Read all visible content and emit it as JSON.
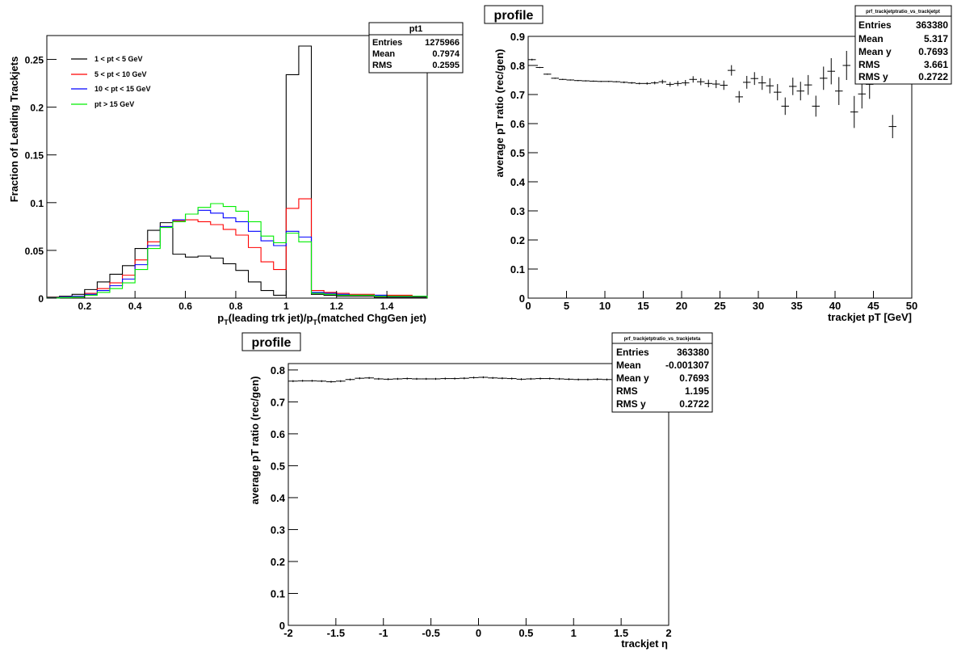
{
  "chart_data": [
    {
      "type": "line",
      "xlabel_pre": "p",
      "xlabel_sub1": "T",
      "xlabel_mid": "(leading trk jet)/p",
      "xlabel_sub2": "T",
      "xlabel_post": "(matched ChgGen jet)",
      "ylabel": "Fraction of Leading Trackjets",
      "xlim": [
        0.05,
        1.56
      ],
      "ylim": [
        0,
        0.275
      ],
      "xticks": [
        {
          "v": 0.2,
          "label": "0.2"
        },
        {
          "v": 0.4,
          "label": "0.4"
        },
        {
          "v": 0.6,
          "label": "0.6"
        },
        {
          "v": 0.8,
          "label": "0.8"
        },
        {
          "v": 1.0,
          "label": "1"
        },
        {
          "v": 1.2,
          "label": "1.2"
        },
        {
          "v": 1.4,
          "label": "1.4"
        }
      ],
      "yticks": [
        {
          "v": 0,
          "label": "0"
        },
        {
          "v": 0.05,
          "label": "0.05"
        },
        {
          "v": 0.1,
          "label": "0.1"
        },
        {
          "v": 0.15,
          "label": "0.15"
        },
        {
          "v": 0.2,
          "label": "0.2"
        },
        {
          "v": 0.25,
          "label": "0.25"
        }
      ],
      "bin_edges": [
        0.05,
        0.1,
        0.15,
        0.2,
        0.25,
        0.3,
        0.35,
        0.4,
        0.45,
        0.5,
        0.55,
        0.6,
        0.65,
        0.7,
        0.75,
        0.8,
        0.85,
        0.9,
        0.95,
        1.0,
        1.05,
        1.1,
        1.15,
        1.2,
        1.25,
        1.3,
        1.35,
        1.4,
        1.45,
        1.5,
        1.56
      ],
      "legend": {
        "placement": "top-left"
      },
      "series": [
        {
          "name": "1 < pt < 5 GeV",
          "color": "#000000",
          "values": [
            0.001,
            0.002,
            0.004,
            0.009,
            0.017,
            0.025,
            0.034,
            0.052,
            0.071,
            0.079,
            0.046,
            0.043,
            0.044,
            0.042,
            0.036,
            0.029,
            0.017,
            0.008,
            0.003,
            0.234,
            0.264,
            0.004,
            0.003,
            0.002,
            0.002,
            0.002,
            0.001,
            0.001,
            0.001,
            0.001
          ]
        },
        {
          "name": "5 < pt < 10 GeV",
          "color": "#ff0000",
          "values": [
            0.0005,
            0.001,
            0.002,
            0.005,
            0.01,
            0.016,
            0.024,
            0.04,
            0.059,
            0.075,
            0.081,
            0.082,
            0.08,
            0.077,
            0.072,
            0.066,
            0.053,
            0.038,
            0.03,
            0.094,
            0.104,
            0.008,
            0.006,
            0.005,
            0.004,
            0.004,
            0.003,
            0.003,
            0.003,
            0.002
          ]
        },
        {
          "name": "10 < pt < 15 GeV",
          "color": "#0000ff",
          "values": [
            0.0003,
            0.001,
            0.002,
            0.004,
            0.008,
            0.013,
            0.02,
            0.035,
            0.055,
            0.075,
            0.082,
            0.088,
            0.092,
            0.089,
            0.084,
            0.08,
            0.07,
            0.06,
            0.055,
            0.07,
            0.064,
            0.006,
            0.005,
            0.004,
            0.003,
            0.003,
            0.003,
            0.002,
            0.002,
            0.002
          ]
        },
        {
          "name": "pt > 15 GeV",
          "color": "#00ee00",
          "values": [
            0.0002,
            0.0005,
            0.001,
            0.003,
            0.006,
            0.01,
            0.016,
            0.03,
            0.052,
            0.074,
            0.08,
            0.088,
            0.095,
            0.099,
            0.096,
            0.091,
            0.08,
            0.065,
            0.058,
            0.068,
            0.059,
            0.005,
            0.004,
            0.003,
            0.003,
            0.003,
            0.002,
            0.002,
            0.002,
            0.002
          ]
        }
      ],
      "stats": {
        "title": "pt1",
        "rows": [
          {
            "label": "Entries",
            "value": "1275966"
          },
          {
            "label": "Mean",
            "value": "0.7974"
          },
          {
            "label": "RMS",
            "value": "0.2595"
          }
        ]
      }
    },
    {
      "type": "scatter",
      "title": "profile",
      "xlabel": "trackjet pT [GeV]",
      "ylabel": "average pT ratio (rec/gen)",
      "xlim": [
        0,
        50
      ],
      "ylim": [
        0,
        0.9
      ],
      "xticks": [
        {
          "v": 0,
          "label": "0"
        },
        {
          "v": 5,
          "label": "5"
        },
        {
          "v": 10,
          "label": "10"
        },
        {
          "v": 15,
          "label": "15"
        },
        {
          "v": 20,
          "label": "20"
        },
        {
          "v": 25,
          "label": "25"
        },
        {
          "v": 30,
          "label": "30"
        },
        {
          "v": 35,
          "label": "35"
        },
        {
          "v": 40,
          "label": "40"
        },
        {
          "v": 45,
          "label": "45"
        },
        {
          "v": 50,
          "label": "50"
        }
      ],
      "yticks": [
        {
          "v": 0,
          "label": "0"
        },
        {
          "v": 0.1,
          "label": "0.1"
        },
        {
          "v": 0.2,
          "label": "0.2"
        },
        {
          "v": 0.3,
          "label": "0.3"
        },
        {
          "v": 0.4,
          "label": "0.4"
        },
        {
          "v": 0.5,
          "label": "0.5"
        },
        {
          "v": 0.6,
          "label": "0.6"
        },
        {
          "v": 0.7,
          "label": "0.7"
        },
        {
          "v": 0.8,
          "label": "0.8"
        },
        {
          "v": 0.9,
          "label": "0.9"
        }
      ],
      "points": [
        {
          "x": 0.5,
          "y": 0.82,
          "e": 0.003
        },
        {
          "x": 1.5,
          "y": 0.793,
          "e": 0.002
        },
        {
          "x": 2.5,
          "y": 0.77,
          "e": 0.002
        },
        {
          "x": 3.5,
          "y": 0.756,
          "e": 0.002
        },
        {
          "x": 4.5,
          "y": 0.752,
          "e": 0.002
        },
        {
          "x": 5.5,
          "y": 0.75,
          "e": 0.002
        },
        {
          "x": 6.5,
          "y": 0.748,
          "e": 0.002
        },
        {
          "x": 7.5,
          "y": 0.747,
          "e": 0.002
        },
        {
          "x": 8.5,
          "y": 0.746,
          "e": 0.002
        },
        {
          "x": 9.5,
          "y": 0.745,
          "e": 0.002
        },
        {
          "x": 10.5,
          "y": 0.745,
          "e": 0.002
        },
        {
          "x": 11.5,
          "y": 0.744,
          "e": 0.002
        },
        {
          "x": 12.5,
          "y": 0.742,
          "e": 0.003
        },
        {
          "x": 13.5,
          "y": 0.74,
          "e": 0.003
        },
        {
          "x": 14.5,
          "y": 0.738,
          "e": 0.003
        },
        {
          "x": 15.5,
          "y": 0.738,
          "e": 0.004
        },
        {
          "x": 16.5,
          "y": 0.74,
          "e": 0.005
        },
        {
          "x": 17.5,
          "y": 0.744,
          "e": 0.007
        },
        {
          "x": 18.5,
          "y": 0.735,
          "e": 0.008
        },
        {
          "x": 19.5,
          "y": 0.738,
          "e": 0.009
        },
        {
          "x": 20.5,
          "y": 0.74,
          "e": 0.01
        },
        {
          "x": 21.5,
          "y": 0.752,
          "e": 0.011
        },
        {
          "x": 22.5,
          "y": 0.744,
          "e": 0.012
        },
        {
          "x": 23.5,
          "y": 0.738,
          "e": 0.013
        },
        {
          "x": 24.5,
          "y": 0.736,
          "e": 0.014
        },
        {
          "x": 25.5,
          "y": 0.732,
          "e": 0.016
        },
        {
          "x": 26.5,
          "y": 0.783,
          "e": 0.018
        },
        {
          "x": 27.5,
          "y": 0.692,
          "e": 0.02
        },
        {
          "x": 28.5,
          "y": 0.742,
          "e": 0.022
        },
        {
          "x": 29.5,
          "y": 0.755,
          "e": 0.022
        },
        {
          "x": 30.5,
          "y": 0.74,
          "e": 0.024
        },
        {
          "x": 31.5,
          "y": 0.73,
          "e": 0.026
        },
        {
          "x": 32.5,
          "y": 0.708,
          "e": 0.028
        },
        {
          "x": 33.5,
          "y": 0.66,
          "e": 0.03
        },
        {
          "x": 34.5,
          "y": 0.728,
          "e": 0.03
        },
        {
          "x": 35.5,
          "y": 0.712,
          "e": 0.032
        },
        {
          "x": 36.5,
          "y": 0.733,
          "e": 0.034
        },
        {
          "x": 37.5,
          "y": 0.66,
          "e": 0.036
        },
        {
          "x": 38.5,
          "y": 0.756,
          "e": 0.04
        },
        {
          "x": 39.5,
          "y": 0.78,
          "e": 0.045
        },
        {
          "x": 40.5,
          "y": 0.712,
          "e": 0.048
        },
        {
          "x": 41.5,
          "y": 0.8,
          "e": 0.05
        },
        {
          "x": 42.5,
          "y": 0.64,
          "e": 0.055
        },
        {
          "x": 43.5,
          "y": 0.702,
          "e": 0.05
        },
        {
          "x": 44.5,
          "y": 0.735,
          "e": 0.05
        },
        {
          "x": 47.5,
          "y": 0.59,
          "e": 0.04
        }
      ],
      "stats": {
        "title": "prf_trackjetptratio_vs_trackjetpt",
        "rows": [
          {
            "label": "Entries",
            "value": "363380"
          },
          {
            "label": "Mean",
            "value": "5.317"
          },
          {
            "label": "Mean y",
            "value": "0.7693"
          },
          {
            "label": "RMS",
            "value": "3.661"
          },
          {
            "label": "RMS y",
            "value": "0.2722"
          }
        ]
      }
    },
    {
      "type": "scatter",
      "title": "profile",
      "xlabel": "trackjet η",
      "ylabel": "average pT ratio (rec/gen)",
      "xlim": [
        -2,
        2
      ],
      "ylim": [
        0,
        0.82
      ],
      "xticks": [
        {
          "v": -2,
          "label": "-2"
        },
        {
          "v": -1.5,
          "label": "-1.5"
        },
        {
          "v": -1,
          "label": "-1"
        },
        {
          "v": -0.5,
          "label": "-0.5"
        },
        {
          "v": 0,
          "label": "0"
        },
        {
          "v": 0.5,
          "label": "0.5"
        },
        {
          "v": 1,
          "label": "1"
        },
        {
          "v": 1.5,
          "label": "1.5"
        },
        {
          "v": 2,
          "label": "2"
        }
      ],
      "yticks": [
        {
          "v": 0,
          "label": "0"
        },
        {
          "v": 0.1,
          "label": "0.1"
        },
        {
          "v": 0.2,
          "label": "0.2"
        },
        {
          "v": 0.3,
          "label": "0.3"
        },
        {
          "v": 0.4,
          "label": "0.4"
        },
        {
          "v": 0.5,
          "label": "0.5"
        },
        {
          "v": 0.6,
          "label": "0.6"
        },
        {
          "v": 0.7,
          "label": "0.7"
        },
        {
          "v": 0.8,
          "label": "0.8"
        }
      ],
      "points": [
        {
          "x": -1.95,
          "y": 0.765,
          "e": 0.003
        },
        {
          "x": -1.85,
          "y": 0.766,
          "e": 0.003
        },
        {
          "x": -1.75,
          "y": 0.766,
          "e": 0.003
        },
        {
          "x": -1.65,
          "y": 0.765,
          "e": 0.003
        },
        {
          "x": -1.55,
          "y": 0.763,
          "e": 0.003
        },
        {
          "x": -1.45,
          "y": 0.765,
          "e": 0.003
        },
        {
          "x": -1.35,
          "y": 0.77,
          "e": 0.003
        },
        {
          "x": -1.25,
          "y": 0.774,
          "e": 0.003
        },
        {
          "x": -1.15,
          "y": 0.775,
          "e": 0.003
        },
        {
          "x": -1.05,
          "y": 0.772,
          "e": 0.003
        },
        {
          "x": -0.95,
          "y": 0.771,
          "e": 0.003
        },
        {
          "x": -0.85,
          "y": 0.772,
          "e": 0.003
        },
        {
          "x": -0.75,
          "y": 0.773,
          "e": 0.003
        },
        {
          "x": -0.65,
          "y": 0.772,
          "e": 0.003
        },
        {
          "x": -0.55,
          "y": 0.772,
          "e": 0.003
        },
        {
          "x": -0.45,
          "y": 0.772,
          "e": 0.003
        },
        {
          "x": -0.35,
          "y": 0.773,
          "e": 0.003
        },
        {
          "x": -0.25,
          "y": 0.773,
          "e": 0.003
        },
        {
          "x": -0.15,
          "y": 0.774,
          "e": 0.003
        },
        {
          "x": -0.05,
          "y": 0.776,
          "e": 0.003
        },
        {
          "x": 0.05,
          "y": 0.777,
          "e": 0.003
        },
        {
          "x": 0.15,
          "y": 0.775,
          "e": 0.003
        },
        {
          "x": 0.25,
          "y": 0.774,
          "e": 0.003
        },
        {
          "x": 0.35,
          "y": 0.773,
          "e": 0.003
        },
        {
          "x": 0.45,
          "y": 0.771,
          "e": 0.003
        },
        {
          "x": 0.55,
          "y": 0.772,
          "e": 0.003
        },
        {
          "x": 0.65,
          "y": 0.773,
          "e": 0.003
        },
        {
          "x": 0.75,
          "y": 0.773,
          "e": 0.003
        },
        {
          "x": 0.85,
          "y": 0.772,
          "e": 0.003
        },
        {
          "x": 0.95,
          "y": 0.771,
          "e": 0.003
        },
        {
          "x": 1.05,
          "y": 0.77,
          "e": 0.003
        },
        {
          "x": 1.15,
          "y": 0.77,
          "e": 0.003
        },
        {
          "x": 1.25,
          "y": 0.771,
          "e": 0.003
        },
        {
          "x": 1.35,
          "y": 0.77,
          "e": 0.003
        },
        {
          "x": 1.45,
          "y": 0.768,
          "e": 0.003
        },
        {
          "x": 1.55,
          "y": 0.766,
          "e": 0.003
        },
        {
          "x": 1.65,
          "y": 0.766,
          "e": 0.003
        },
        {
          "x": 1.75,
          "y": 0.765,
          "e": 0.003
        },
        {
          "x": 1.85,
          "y": 0.764,
          "e": 0.003
        },
        {
          "x": 1.95,
          "y": 0.764,
          "e": 0.003
        }
      ],
      "stats": {
        "title": "prf_trackjetptratio_vs_trackjeteta",
        "rows": [
          {
            "label": "Entries",
            "value": "363380"
          },
          {
            "label": "Mean",
            "value": "-0.001307"
          },
          {
            "label": "Mean y",
            "value": "0.7693"
          },
          {
            "label": "RMS",
            "value": "1.195"
          },
          {
            "label": "RMS y",
            "value": "0.2722"
          }
        ]
      }
    }
  ]
}
